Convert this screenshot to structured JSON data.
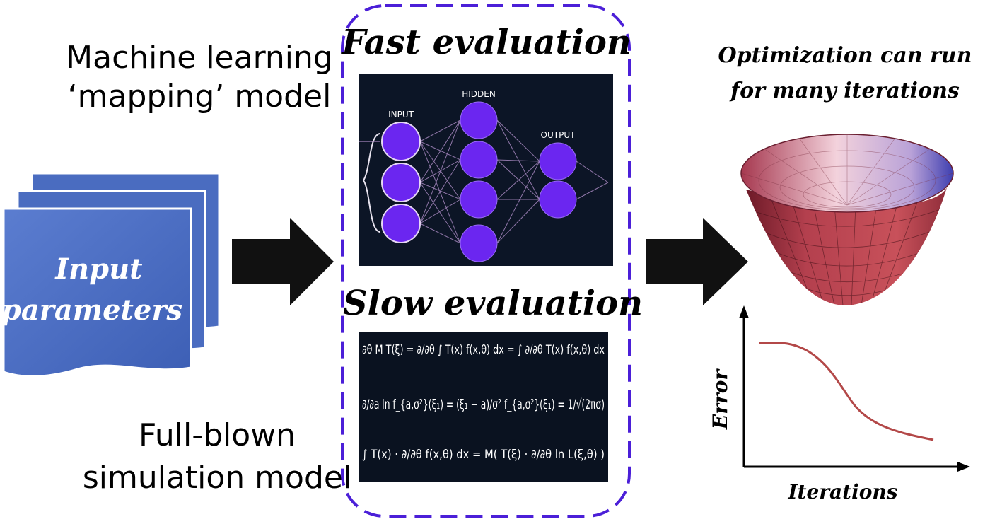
{
  "labels": {
    "ml_model": [
      "Machine learning",
      "‘mapping’ model"
    ],
    "full_model": [
      "Full-blown",
      "simulation model"
    ],
    "fast": "Fast evaluation",
    "slow": "Slow evaluation",
    "input": [
      "Input",
      "parameters"
    ],
    "optimization": [
      "Optimization can run",
      "for many iterations"
    ],
    "nn": {
      "input": "INPUT",
      "hidden": "HIDDEN",
      "output": "OUTPUT"
    },
    "axes": {
      "y": "Error",
      "x": "Iterations"
    }
  },
  "equations": [
    "∂θ  M T(ξ) = ∂/∂θ ∫ T(x) f(x,θ) dx = ∫ ∂/∂θ T(x) f(x,θ) dx",
    "∂/∂a ln f_{a,σ²}(ξ₁) = (ξ₁ − a)/σ²   f_{a,σ²}(ξ₁) = 1/√(2πσ)",
    "∫ T(x) · ∂/∂θ f(x,θ) dx = M( T(ξ) · ∂/∂θ ln L(ξ,θ) )"
  ],
  "colors": {
    "dashed_border": "#4b1fd8",
    "input_sheet": "#4a6cc0",
    "nn_background": "#0c1526",
    "nn_node": "#6b26f0",
    "math_background": "#0a1220",
    "arrow": "#111111",
    "bowl": "#c4506a",
    "curve": "#b34848"
  }
}
